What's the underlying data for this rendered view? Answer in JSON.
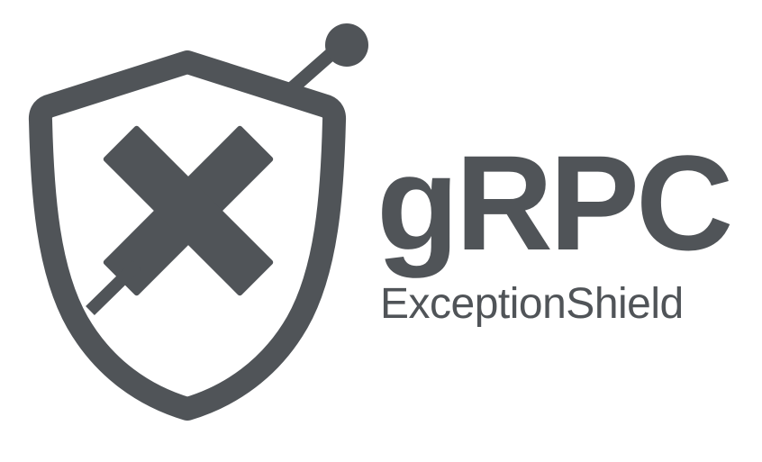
{
  "brand": {
    "title": "gRPC",
    "subtitle": "ExceptionShield"
  },
  "emblem": {
    "icon": "shield-x-icon",
    "antenna_icon": "antenna-icon"
  },
  "colors": {
    "ink": "#505458",
    "background": "#ffffff"
  }
}
